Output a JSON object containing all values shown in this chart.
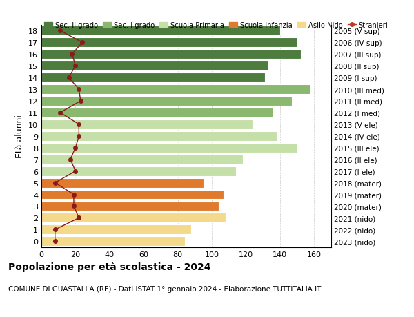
{
  "ages": [
    0,
    1,
    2,
    3,
    4,
    5,
    6,
    7,
    8,
    9,
    10,
    11,
    12,
    13,
    14,
    15,
    16,
    17,
    18
  ],
  "right_labels": [
    "2023 (nido)",
    "2022 (nido)",
    "2021 (nido)",
    "2020 (mater)",
    "2019 (mater)",
    "2018 (mater)",
    "2017 (I ele)",
    "2016 (II ele)",
    "2015 (III ele)",
    "2014 (IV ele)",
    "2013 (V ele)",
    "2012 (I med)",
    "2011 (II med)",
    "2010 (III med)",
    "2009 (I sup)",
    "2008 (II sup)",
    "2007 (III sup)",
    "2006 (IV sup)",
    "2005 (V sup)"
  ],
  "bar_values": [
    84,
    88,
    108,
    104,
    107,
    95,
    114,
    118,
    150,
    138,
    124,
    136,
    147,
    158,
    131,
    133,
    152,
    150,
    140
  ],
  "stranieri_values": [
    8,
    8,
    22,
    19,
    19,
    8,
    20,
    17,
    20,
    22,
    22,
    11,
    23,
    22,
    16,
    20,
    18,
    24,
    11
  ],
  "bar_colors": [
    "#f5d98b",
    "#f5d98b",
    "#f5d98b",
    "#e07b2e",
    "#e07b2e",
    "#e07b2e",
    "#c5dfa8",
    "#c5dfa8",
    "#c5dfa8",
    "#c5dfa8",
    "#c5dfa8",
    "#8ab86e",
    "#8ab86e",
    "#8ab86e",
    "#4d7c3e",
    "#4d7c3e",
    "#4d7c3e",
    "#4d7c3e",
    "#4d7c3e"
  ],
  "legend_labels": [
    "Sec. II grado",
    "Sec. I grado",
    "Scuola Primaria",
    "Scuola Infanzia",
    "Asilo Nido",
    "Stranieri"
  ],
  "legend_colors": [
    "#4d7c3e",
    "#8ab86e",
    "#c5dfa8",
    "#e07b2e",
    "#f5d98b",
    "#c0392b"
  ],
  "title": "Popolazione per età scolastica - 2024",
  "subtitle": "COMUNE DI GUASTALLA (RE) - Dati ISTAT 1° gennaio 2024 - Elaborazione TUTTITALIA.IT",
  "ylabel": "Età alunni",
  "xlim": [
    0,
    170
  ],
  "xticks": [
    0,
    20,
    40,
    60,
    80,
    100,
    120,
    140,
    160
  ],
  "bar_height": 0.82,
  "stranieri_color": "#8b1a1a",
  "stranieri_marker_size": 4,
  "background_color": "#ffffff",
  "grid_color": "#cccccc"
}
